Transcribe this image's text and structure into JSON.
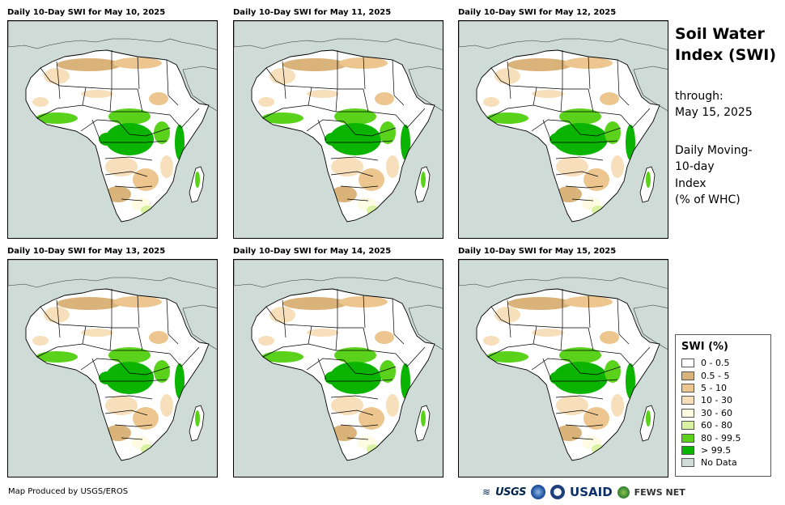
{
  "panels": [
    {
      "title": "Daily 10-Day SWI for May 10, 2025"
    },
    {
      "title": "Daily 10-Day SWI for May 11, 2025"
    },
    {
      "title": "Daily 10-Day SWI for May 12, 2025"
    },
    {
      "title": "Daily 10-Day SWI for May 13, 2025"
    },
    {
      "title": "Daily 10-Day SWI for May 14, 2025"
    },
    {
      "title": "Daily 10-Day SWI for May 15, 2025"
    }
  ],
  "sidebar": {
    "title_line1": "Soil Water",
    "title_line2": "Index (SWI)",
    "through_label": "through:",
    "through_date": "May 15, 2025",
    "desc_line1": "Daily Moving-",
    "desc_line2": "10-day",
    "desc_line3": "Index",
    "desc_line4": "(% of WHC)"
  },
  "legend": {
    "title": "SWI (%)",
    "items": [
      {
        "label": "0 - 0.5",
        "color": "#ffffff"
      },
      {
        "label": "0.5 - 5",
        "color": "#d9b37a"
      },
      {
        "label": "5 - 10",
        "color": "#ecc68e"
      },
      {
        "label": "10 - 30",
        "color": "#f6dfba"
      },
      {
        "label": "30 - 60",
        "color": "#fdfbe2"
      },
      {
        "label": "60 - 80",
        "color": "#d8f2a2"
      },
      {
        "label": "80 - 99.5",
        "color": "#5ad21c"
      },
      {
        "label": "> 99.5",
        "color": "#0ab400"
      },
      {
        "label": "No Data",
        "color": "#cfdbd6"
      }
    ]
  },
  "footer": {
    "credit": "Map Produced by USGS/EROS",
    "logo_usgs": "USGS",
    "logo_usaid": "USAID",
    "logo_fews": "FEWS NET"
  }
}
